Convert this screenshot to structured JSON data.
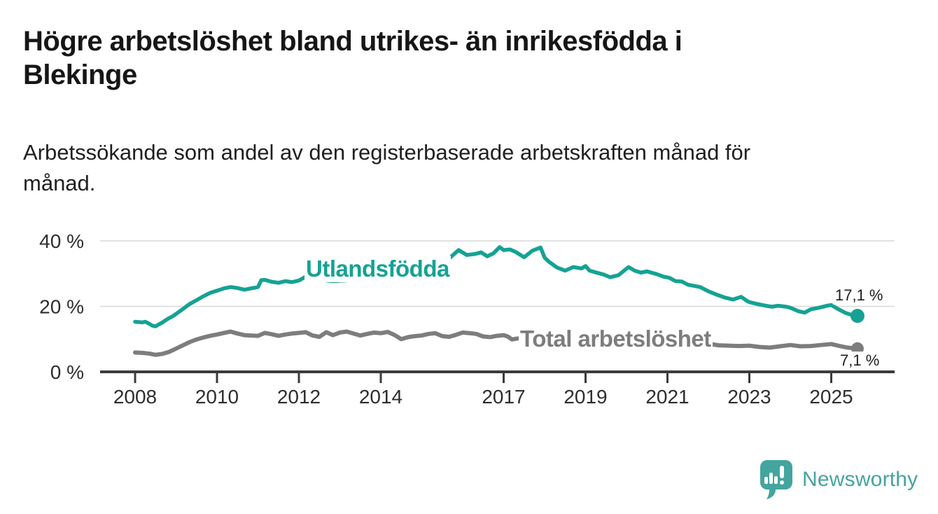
{
  "header": {
    "title_line1": "Högre arbetslöshet bland utrikes- än inrikesfödda i",
    "title_line2": "Blekinge",
    "subtitle_line1": "Arbetssökande som andel av den registerbaserade arbetskraften månad för",
    "subtitle_line2": "månad."
  },
  "colors": {
    "series_utlandsfodda": "#15a294",
    "series_total": "#7d7d7d",
    "axis": "#3b3b3b",
    "gridline": "#d9d9d9",
    "tick_label": "#2e2e2e",
    "logo_teal": "#44a59e",
    "background": "#ffffff"
  },
  "logo": {
    "name": "Newsworthy",
    "icon": "speech-bubble-bar-chart-icon"
  },
  "chart_data": {
    "type": "line",
    "title": "Högre arbetslöshet bland utrikes- än inrikesfödda i Blekinge",
    "subtitle": "Arbetssökande som andel av den registerbaserade arbetskraften månad för månad.",
    "region": "Blekinge",
    "x_unit": "decimal year (monthly observations)",
    "y_unit": "percent of registered labour force",
    "xlim": [
      2007.15,
      2026.55
    ],
    "ylim": [
      0,
      42
    ],
    "grid": "horizontal only",
    "legend_position": "inline labels on lines",
    "xticks": [
      2008,
      2010,
      2012,
      2014,
      2017,
      2019,
      2021,
      2023,
      2025
    ],
    "yticks": [
      {
        "value": 0,
        "label": "0 %"
      },
      {
        "value": 20,
        "label": "20 %"
      },
      {
        "value": 40,
        "label": "40 %"
      }
    ],
    "series": [
      {
        "name": "Utlandsfödda",
        "color": "#15a294",
        "end_label": "17,1 %",
        "final_value": 17.1,
        "points": [
          [
            2008.0,
            15.3
          ],
          [
            2008.08,
            15.2
          ],
          [
            2008.17,
            15.1
          ],
          [
            2008.25,
            15.3
          ],
          [
            2008.33,
            14.8
          ],
          [
            2008.42,
            14.1
          ],
          [
            2008.5,
            13.9
          ],
          [
            2008.58,
            14.5
          ],
          [
            2008.67,
            15.1
          ],
          [
            2008.75,
            15.8
          ],
          [
            2008.83,
            16.4
          ],
          [
            2008.92,
            17.0
          ],
          [
            2009.0,
            17.7
          ],
          [
            2009.17,
            19.2
          ],
          [
            2009.33,
            20.7
          ],
          [
            2009.5,
            21.9
          ],
          [
            2009.67,
            23.1
          ],
          [
            2009.83,
            24.1
          ],
          [
            2010.0,
            24.8
          ],
          [
            2010.17,
            25.5
          ],
          [
            2010.33,
            25.9
          ],
          [
            2010.5,
            25.6
          ],
          [
            2010.67,
            25.1
          ],
          [
            2010.83,
            25.5
          ],
          [
            2011.0,
            25.9
          ],
          [
            2011.08,
            28.0
          ],
          [
            2011.17,
            28.1
          ],
          [
            2011.33,
            27.5
          ],
          [
            2011.5,
            27.2
          ],
          [
            2011.67,
            27.7
          ],
          [
            2011.83,
            27.4
          ],
          [
            2012.0,
            27.9
          ],
          [
            2012.17,
            29.1
          ],
          [
            2012.33,
            28.2
          ],
          [
            2012.5,
            28.7
          ],
          [
            2012.67,
            27.9
          ],
          [
            2012.83,
            27.7
          ],
          [
            2013.0,
            27.8
          ],
          [
            2013.25,
            28.0
          ],
          [
            2013.5,
            28.2
          ],
          [
            2013.75,
            28.5
          ],
          [
            2014.0,
            28.8
          ],
          [
            2014.25,
            29.2
          ],
          [
            2014.5,
            29.7
          ],
          [
            2014.75,
            30.3
          ],
          [
            2015.0,
            31.1
          ],
          [
            2015.25,
            32.2
          ],
          [
            2015.5,
            33.7
          ],
          [
            2015.7,
            35.0
          ],
          [
            2015.9,
            37.2
          ],
          [
            2016.1,
            35.7
          ],
          [
            2016.3,
            36.0
          ],
          [
            2016.45,
            36.5
          ],
          [
            2016.6,
            35.3
          ],
          [
            2016.75,
            36.2
          ],
          [
            2016.9,
            38.1
          ],
          [
            2017.0,
            37.2
          ],
          [
            2017.15,
            37.4
          ],
          [
            2017.3,
            36.6
          ],
          [
            2017.5,
            35.0
          ],
          [
            2017.7,
            37.0
          ],
          [
            2017.9,
            38.0
          ],
          [
            2018.0,
            34.9
          ],
          [
            2018.1,
            33.7
          ],
          [
            2018.3,
            31.9
          ],
          [
            2018.5,
            30.9
          ],
          [
            2018.7,
            32.0
          ],
          [
            2018.9,
            31.6
          ],
          [
            2019.0,
            32.3
          ],
          [
            2019.1,
            30.9
          ],
          [
            2019.3,
            30.2
          ],
          [
            2019.45,
            29.7
          ],
          [
            2019.6,
            28.9
          ],
          [
            2019.8,
            29.5
          ],
          [
            2020.05,
            32.0
          ],
          [
            2020.2,
            30.9
          ],
          [
            2020.35,
            30.3
          ],
          [
            2020.5,
            30.7
          ],
          [
            2020.75,
            29.8
          ],
          [
            2020.9,
            29.1
          ],
          [
            2021.05,
            28.7
          ],
          [
            2021.2,
            27.7
          ],
          [
            2021.35,
            27.6
          ],
          [
            2021.5,
            26.6
          ],
          [
            2021.8,
            25.9
          ],
          [
            2022.0,
            24.6
          ],
          [
            2022.2,
            23.6
          ],
          [
            2022.4,
            22.7
          ],
          [
            2022.6,
            22.1
          ],
          [
            2022.8,
            22.9
          ],
          [
            2022.95,
            21.6
          ],
          [
            2023.0,
            21.3
          ],
          [
            2023.2,
            20.7
          ],
          [
            2023.4,
            20.2
          ],
          [
            2023.55,
            19.9
          ],
          [
            2023.7,
            20.2
          ],
          [
            2023.9,
            19.9
          ],
          [
            2024.0,
            19.6
          ],
          [
            2024.2,
            18.5
          ],
          [
            2024.35,
            18.1
          ],
          [
            2024.5,
            19.1
          ],
          [
            2024.7,
            19.6
          ],
          [
            2024.9,
            20.2
          ],
          [
            2025.0,
            20.4
          ],
          [
            2025.15,
            19.3
          ],
          [
            2025.35,
            18.0
          ],
          [
            2025.5,
            17.4
          ],
          [
            2025.64,
            17.1
          ]
        ]
      },
      {
        "name": "Total arbetslöshet",
        "color": "#7d7d7d",
        "end_label": "7,1 %",
        "final_value": 7.1,
        "points": [
          [
            2008.0,
            5.9
          ],
          [
            2008.17,
            5.8
          ],
          [
            2008.33,
            5.6
          ],
          [
            2008.5,
            5.2
          ],
          [
            2008.67,
            5.5
          ],
          [
            2008.83,
            6.1
          ],
          [
            2009.0,
            7.1
          ],
          [
            2009.17,
            8.1
          ],
          [
            2009.33,
            9.1
          ],
          [
            2009.5,
            9.9
          ],
          [
            2009.67,
            10.5
          ],
          [
            2009.83,
            11.0
          ],
          [
            2010.0,
            11.4
          ],
          [
            2010.17,
            11.9
          ],
          [
            2010.33,
            12.3
          ],
          [
            2010.5,
            11.7
          ],
          [
            2010.67,
            11.2
          ],
          [
            2010.83,
            11.1
          ],
          [
            2011.0,
            11.0
          ],
          [
            2011.17,
            11.9
          ],
          [
            2011.33,
            11.5
          ],
          [
            2011.5,
            11.0
          ],
          [
            2011.67,
            11.4
          ],
          [
            2011.83,
            11.7
          ],
          [
            2012.0,
            11.9
          ],
          [
            2012.17,
            12.1
          ],
          [
            2012.33,
            11.1
          ],
          [
            2012.5,
            10.7
          ],
          [
            2012.67,
            12.1
          ],
          [
            2012.83,
            11.2
          ],
          [
            2013.0,
            12.0
          ],
          [
            2013.17,
            12.3
          ],
          [
            2013.33,
            11.7
          ],
          [
            2013.5,
            11.1
          ],
          [
            2013.67,
            11.6
          ],
          [
            2013.83,
            12.0
          ],
          [
            2014.0,
            11.8
          ],
          [
            2014.17,
            12.2
          ],
          [
            2014.33,
            11.3
          ],
          [
            2014.5,
            10.0
          ],
          [
            2014.67,
            10.6
          ],
          [
            2014.83,
            10.9
          ],
          [
            2015.0,
            11.1
          ],
          [
            2015.17,
            11.6
          ],
          [
            2015.33,
            11.8
          ],
          [
            2015.5,
            10.9
          ],
          [
            2015.67,
            10.7
          ],
          [
            2015.83,
            11.3
          ],
          [
            2016.0,
            12.0
          ],
          [
            2016.17,
            11.8
          ],
          [
            2016.33,
            11.6
          ],
          [
            2016.5,
            10.8
          ],
          [
            2016.67,
            10.6
          ],
          [
            2016.83,
            11.0
          ],
          [
            2017.0,
            11.2
          ],
          [
            2017.1,
            10.8
          ],
          [
            2017.2,
            9.9
          ],
          [
            2017.35,
            10.2
          ],
          [
            2017.6,
            10.5
          ],
          [
            2018.0,
            10.6
          ],
          [
            2018.4,
            10.3
          ],
          [
            2018.8,
            10.0
          ],
          [
            2019.2,
            9.9
          ],
          [
            2019.6,
            9.7
          ],
          [
            2020.0,
            9.9
          ],
          [
            2020.4,
            10.3
          ],
          [
            2020.8,
            10.0
          ],
          [
            2021.2,
            9.6
          ],
          [
            2021.6,
            9.1
          ],
          [
            2022.05,
            8.5
          ],
          [
            2022.25,
            8.1
          ],
          [
            2022.5,
            8.0
          ],
          [
            2022.75,
            7.9
          ],
          [
            2023.0,
            8.0
          ],
          [
            2023.25,
            7.6
          ],
          [
            2023.5,
            7.4
          ],
          [
            2023.75,
            7.8
          ],
          [
            2024.0,
            8.2
          ],
          [
            2024.25,
            7.8
          ],
          [
            2024.5,
            7.9
          ],
          [
            2024.75,
            8.2
          ],
          [
            2025.0,
            8.5
          ],
          [
            2025.2,
            7.9
          ],
          [
            2025.4,
            7.4
          ],
          [
            2025.64,
            7.1
          ]
        ]
      }
    ]
  }
}
